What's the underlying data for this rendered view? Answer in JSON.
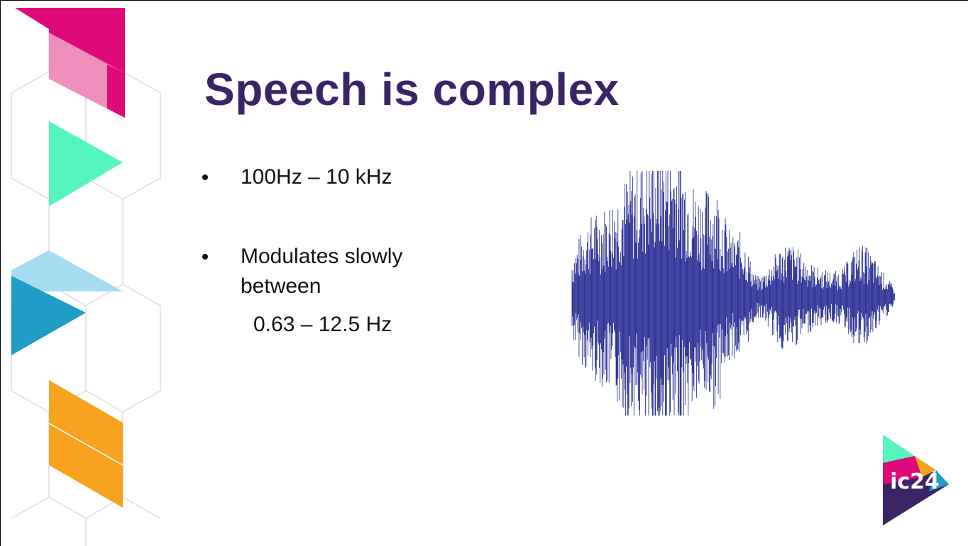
{
  "slide": {
    "title": "Speech is complex",
    "bullets": [
      {
        "text": "100Hz – 10 kHz"
      },
      {
        "text": "Modulates slowly between",
        "continuation": "0.63 – 12.5 Hz"
      }
    ],
    "logo": {
      "text": "ic24"
    }
  }
}
